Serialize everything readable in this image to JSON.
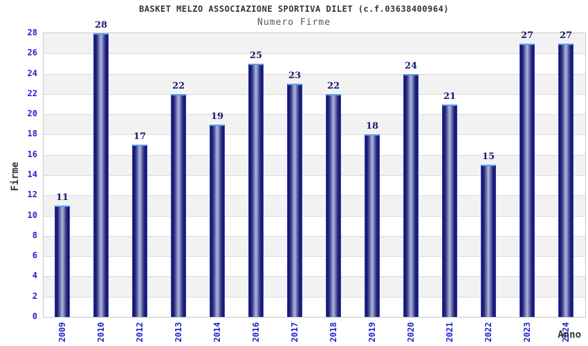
{
  "header": {
    "title": "BASKET MELZO ASSOCIAZIONE SPORTIVA DILET (c.f.03638400964)",
    "subtitle": "Numero Firme"
  },
  "chart_data": {
    "type": "bar",
    "title": "BASKET MELZO ASSOCIAZIONE SPORTIVA DILET (c.f.03638400964)",
    "subtitle": "Numero Firme",
    "categories": [
      "2009",
      "2010",
      "2012",
      "2013",
      "2014",
      "2016",
      "2017",
      "2018",
      "2019",
      "2020",
      "2021",
      "2022",
      "2023",
      "2024"
    ],
    "values": [
      11,
      28,
      17,
      22,
      19,
      25,
      23,
      22,
      18,
      24,
      21,
      15,
      27,
      27
    ],
    "xlabel": "Anno",
    "ylabel": "Firme",
    "ylim": [
      0,
      28
    ],
    "ytick_step": 2,
    "grid": true,
    "legend": false,
    "banded_background": true
  },
  "colors": {
    "axis_text": "#2323cc",
    "value_label": "#191970",
    "title_text": "#333333",
    "subtitle_text": "#555555",
    "band_shaded": "#f2f2f2",
    "band_plain": "#ffffff",
    "gridline": "#d9d9d9",
    "plot_border": "#c8c8c8",
    "bar_edge": "#2e3bd6",
    "bar_top_edge": "#5aa0f0",
    "bar_dark": "#15155e",
    "bar_mid": "#23267c",
    "bar_light": "#b0b8dd"
  }
}
